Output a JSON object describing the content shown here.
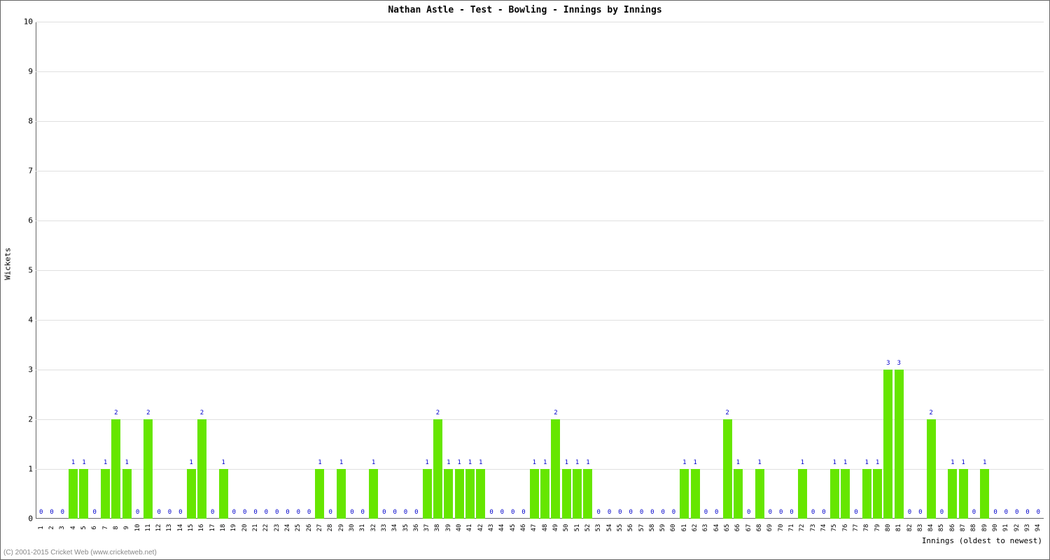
{
  "chart": {
    "type": "bar",
    "title": "Nathan Astle - Test - Bowling - Innings by Innings",
    "title_fontsize": 13,
    "xlabel": "Innings (oldest to newest)",
    "ylabel": "Wickets",
    "label_fontsize": 11,
    "ylim": [
      0,
      10
    ],
    "ytick_step": 1,
    "background_color": "#ffffff",
    "grid_color": "#e0e0e0",
    "border_color": "#666666",
    "bar_color": "#66e600",
    "bar_label_color": "#0000cc",
    "bar_width_ratio": 0.85,
    "tick_label_fontsize": 9,
    "categories": [
      1,
      2,
      3,
      4,
      5,
      6,
      7,
      8,
      9,
      10,
      11,
      12,
      13,
      14,
      15,
      16,
      17,
      18,
      19,
      20,
      21,
      22,
      23,
      24,
      25,
      26,
      27,
      28,
      29,
      30,
      31,
      32,
      33,
      34,
      35,
      36,
      37,
      38,
      39,
      40,
      41,
      42,
      43,
      44,
      45,
      46,
      47,
      48,
      49,
      50,
      51,
      52,
      53,
      54,
      55,
      56,
      57,
      58,
      59,
      60,
      61,
      62,
      63,
      64,
      65,
      66,
      67,
      68,
      69,
      70,
      71,
      72,
      73,
      74,
      75,
      76,
      77,
      78,
      79,
      80,
      81,
      82,
      83,
      84,
      85,
      86,
      87,
      88,
      89,
      90,
      91,
      92,
      93,
      94
    ],
    "values": [
      0,
      0,
      0,
      1,
      1,
      0,
      1,
      2,
      1,
      0,
      2,
      0,
      0,
      0,
      1,
      2,
      0,
      1,
      0,
      0,
      0,
      0,
      0,
      0,
      0,
      0,
      1,
      0,
      1,
      0,
      0,
      1,
      0,
      0,
      0,
      0,
      1,
      2,
      1,
      1,
      1,
      1,
      0,
      0,
      0,
      0,
      1,
      1,
      2,
      1,
      1,
      1,
      0,
      0,
      0,
      0,
      0,
      0,
      0,
      0,
      1,
      1,
      0,
      0,
      2,
      1,
      0,
      1,
      0,
      0,
      0,
      1,
      0,
      0,
      1,
      1,
      0,
      1,
      1,
      3,
      3,
      0,
      0,
      2,
      0,
      1,
      1,
      0,
      1,
      0,
      0,
      0,
      0,
      0
    ]
  },
  "credit": "(C) 2001-2015 Cricket Web (www.cricketweb.net)"
}
